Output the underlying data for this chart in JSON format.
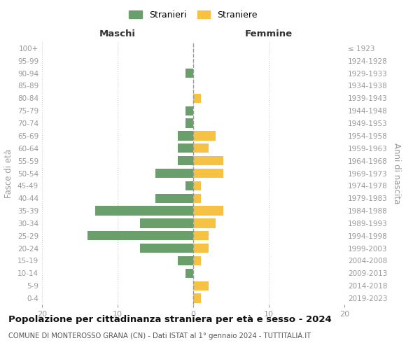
{
  "age_groups": [
    "0-4",
    "5-9",
    "10-14",
    "15-19",
    "20-24",
    "25-29",
    "30-34",
    "35-39",
    "40-44",
    "45-49",
    "50-54",
    "55-59",
    "60-64",
    "65-69",
    "70-74",
    "75-79",
    "80-84",
    "85-89",
    "90-94",
    "95-99",
    "100+"
  ],
  "birth_years": [
    "2019-2023",
    "2014-2018",
    "2009-2013",
    "2004-2008",
    "1999-2003",
    "1994-1998",
    "1989-1993",
    "1984-1988",
    "1979-1983",
    "1974-1978",
    "1969-1973",
    "1964-1968",
    "1959-1963",
    "1954-1958",
    "1949-1953",
    "1944-1948",
    "1939-1943",
    "1934-1938",
    "1929-1933",
    "1924-1928",
    "≤ 1923"
  ],
  "maschi": [
    0,
    0,
    1,
    2,
    7,
    14,
    7,
    13,
    5,
    1,
    5,
    2,
    2,
    2,
    1,
    1,
    0,
    0,
    1,
    0,
    0
  ],
  "femmine": [
    1,
    2,
    0,
    1,
    2,
    2,
    3,
    4,
    1,
    1,
    4,
    4,
    2,
    3,
    0,
    0,
    1,
    0,
    0,
    0,
    0
  ],
  "color_maschi": "#6a9e6a",
  "color_femmine": "#f5c243",
  "xlim": 20,
  "title": "Popolazione per cittadinanza straniera per età e sesso - 2024",
  "subtitle": "COMUNE DI MONTEROSSO GRANA (CN) - Dati ISTAT al 1° gennaio 2024 - TUTTITALIA.IT",
  "legend_maschi": "Stranieri",
  "legend_femmine": "Straniere",
  "ylabel_left": "Fasce di età",
  "ylabel_right": "Anni di nascita",
  "label_maschi": "Maschi",
  "label_femmine": "Femmine",
  "background_color": "#ffffff",
  "grid_color": "#cccccc",
  "tick_color": "#999999",
  "vline_color": "#999999"
}
